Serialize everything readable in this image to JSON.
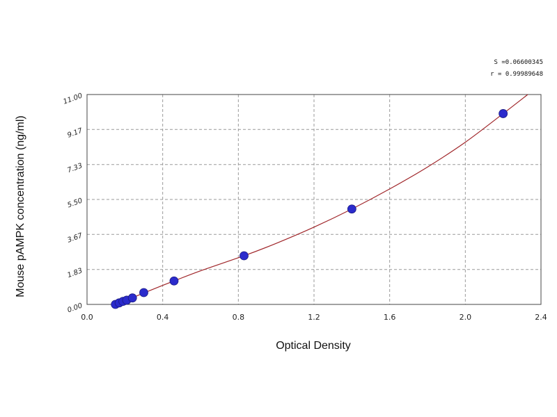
{
  "chart_data": {
    "type": "scatter",
    "title": "",
    "xlabel": "Optical Density",
    "ylabel": "Mouse pAMPK concentration (ng/ml)",
    "xlim": [
      0.0,
      2.4
    ],
    "ylim": [
      0.0,
      11.0
    ],
    "x_ticks": [
      "0.0",
      "0.4",
      "0.8",
      "1.2",
      "1.6",
      "2.0",
      "2.4"
    ],
    "x_tick_values": [
      0.0,
      0.4,
      0.8,
      1.2,
      1.6,
      2.0,
      2.4
    ],
    "y_ticks": [
      "0.00",
      "1.83",
      "3.67",
      "5.50",
      "7.33",
      "9.17",
      "11.00"
    ],
    "y_tick_values": [
      0.0,
      1.83,
      3.67,
      5.5,
      7.33,
      9.17,
      11.0
    ],
    "grid": true,
    "annotations": [
      "S =0.06600345",
      "r = 0.99989648"
    ],
    "series": [
      {
        "points": [
          {
            "x": 0.15,
            "y": 0.0
          },
          {
            "x": 0.17,
            "y": 0.08
          },
          {
            "x": 0.19,
            "y": 0.16
          },
          {
            "x": 0.21,
            "y": 0.22
          },
          {
            "x": 0.24,
            "y": 0.34
          },
          {
            "x": 0.3,
            "y": 0.62
          },
          {
            "x": 0.46,
            "y": 1.23
          },
          {
            "x": 0.83,
            "y": 2.55
          },
          {
            "x": 1.4,
            "y": 5.0
          },
          {
            "x": 2.2,
            "y": 10.0
          }
        ],
        "color": "#2b2bcc"
      }
    ],
    "fit_curve": {
      "color": "#a0262a",
      "x": [
        0.13,
        0.2,
        0.3,
        0.46,
        0.6,
        0.83,
        1.0,
        1.2,
        1.4,
        1.6,
        1.8,
        2.0,
        2.2,
        2.33
      ],
      "y": [
        -0.08,
        0.18,
        0.6,
        1.23,
        1.76,
        2.55,
        3.2,
        4.05,
        5.0,
        6.05,
        7.2,
        8.5,
        10.0,
        11.0
      ]
    }
  }
}
